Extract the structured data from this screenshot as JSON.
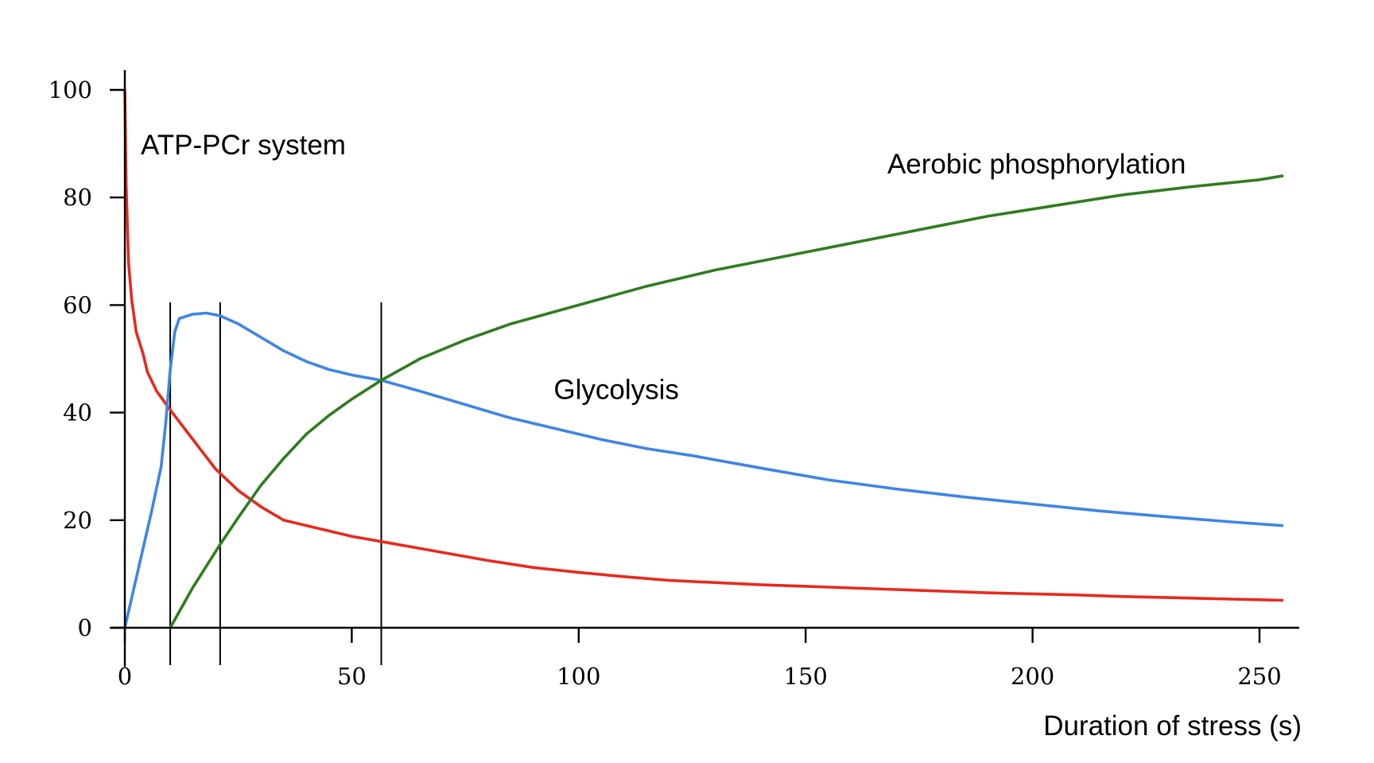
{
  "chart_data": {
    "type": "line",
    "title": "",
    "xlabel": "Duration of stress (s)",
    "ylabel": "",
    "xlim": [
      0,
      255
    ],
    "ylim": [
      0,
      100
    ],
    "x_ticks": [
      0,
      50,
      100,
      150,
      200,
      250
    ],
    "y_ticks": [
      0,
      20,
      40,
      60,
      80,
      100
    ],
    "grid": false,
    "legend": "none",
    "vertical_markers": [
      10,
      21,
      56.5
    ],
    "series": [
      {
        "name": "ATP-PCr system",
        "color": "#e8291c",
        "x": [
          0,
          0.3,
          0.8,
          1.5,
          2.5,
          4,
          5,
          7,
          10,
          15,
          20,
          25,
          30,
          35,
          40,
          50,
          60,
          70,
          80,
          90,
          100,
          110,
          120,
          130,
          140,
          150,
          160,
          170,
          180,
          190,
          200,
          210,
          220,
          230,
          240,
          250,
          255
        ],
        "y": [
          100,
          82,
          68,
          61,
          55,
          51,
          47.5,
          44,
          40.5,
          35,
          29.5,
          25.5,
          22.5,
          20,
          19,
          17,
          15.5,
          14,
          12.5,
          11.2,
          10.3,
          9.5,
          8.8,
          8.4,
          8,
          7.7,
          7.4,
          7.1,
          6.8,
          6.5,
          6.3,
          6.1,
          5.8,
          5.6,
          5.4,
          5.2,
          5.1
        ]
      },
      {
        "name": "Glycolysis",
        "color": "#3d85e8",
        "x": [
          0,
          3,
          6,
          8,
          9,
          10,
          11,
          12,
          15,
          18,
          21,
          25,
          30,
          35,
          40,
          45,
          50,
          56.5,
          65,
          75,
          85,
          95,
          105,
          115,
          125,
          140,
          155,
          170,
          185,
          200,
          215,
          230,
          245,
          255
        ],
        "y": [
          0,
          11,
          22,
          30,
          38,
          48,
          55,
          57.5,
          58.3,
          58.5,
          58,
          56.5,
          54,
          51.5,
          49.5,
          48,
          47,
          46,
          44,
          41.5,
          39,
          37,
          35,
          33.3,
          32,
          29.7,
          27.5,
          25.8,
          24.3,
          23,
          21.7,
          20.6,
          19.6,
          19
        ]
      },
      {
        "name": "Aerobic phosphorylation",
        "color": "#2e7d1f",
        "x": [
          10,
          15,
          21,
          25,
          30,
          35,
          40,
          45,
          50,
          56.5,
          65,
          75,
          85,
          100,
          115,
          130,
          145,
          160,
          175,
          190,
          205,
          220,
          235,
          250,
          255
        ],
        "y": [
          0,
          7.5,
          15.5,
          20.5,
          26.5,
          31.5,
          36,
          39.5,
          42.5,
          46,
          50,
          53.5,
          56.5,
          60,
          63.5,
          66.5,
          69,
          71.5,
          74,
          76.5,
          78.5,
          80.5,
          82,
          83.3,
          84
        ]
      }
    ],
    "annotations": [
      {
        "text": "ATP-PCr system",
        "x": 3.5,
        "y": 88
      },
      {
        "text": "Aerobic phosphorylation",
        "x": 168,
        "y": 84.5
      },
      {
        "text": "Glycolysis",
        "x": 94.5,
        "y": 42.5
      }
    ]
  }
}
